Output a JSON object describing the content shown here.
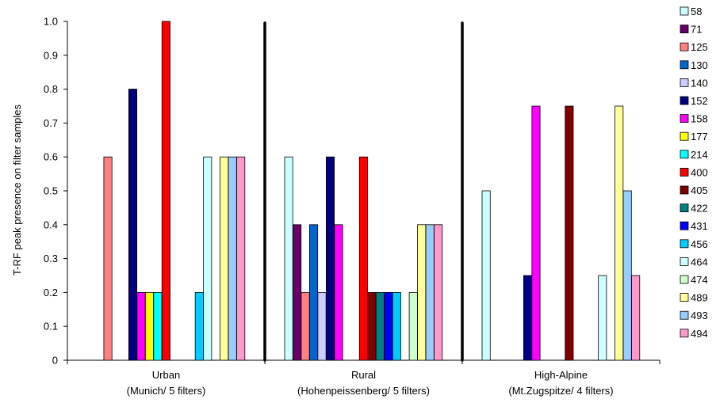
{
  "chart_data": {
    "type": "bar",
    "ylabel": "T-RF peak presence on filter samples",
    "xlabel": "",
    "ylim": [
      0,
      1.0
    ],
    "yticks": [
      "0",
      "0.1",
      "0.2",
      "0.3",
      "0.4",
      "0.5",
      "0.6",
      "0.7",
      "0.8",
      "0.9",
      "1.0"
    ],
    "grid": false,
    "legend_position": "right",
    "categories": [
      [
        "Urban",
        "(Munich/ 5 filters)"
      ],
      [
        "Rural",
        "(Hohenpeissenberg/ 5 filters)"
      ],
      [
        "High-Alpine",
        "(Mt.Zugspitze/ 4 filters)"
      ]
    ],
    "series": [
      {
        "name": "58",
        "color": "#ccffff",
        "values": [
          0,
          0.6,
          0.5
        ]
      },
      {
        "name": "71",
        "color": "#660066",
        "values": [
          0,
          0.4,
          0
        ]
      },
      {
        "name": "125",
        "color": "#ff8080",
        "values": [
          0.6,
          0.2,
          0
        ]
      },
      {
        "name": "130",
        "color": "#0066cc",
        "values": [
          0,
          0.4,
          0
        ]
      },
      {
        "name": "140",
        "color": "#ccccff",
        "values": [
          0,
          0.2,
          0
        ]
      },
      {
        "name": "152",
        "color": "#000080",
        "values": [
          0.8,
          0.6,
          0.25
        ]
      },
      {
        "name": "158",
        "color": "#ff00ff",
        "values": [
          0.2,
          0.4,
          0.75
        ]
      },
      {
        "name": "177",
        "color": "#ffff00",
        "values": [
          0.2,
          0,
          0
        ]
      },
      {
        "name": "214",
        "color": "#00ffff",
        "values": [
          0.2,
          0,
          0
        ]
      },
      {
        "name": "400",
        "color": "#ff0000",
        "values": [
          1.0,
          0.6,
          0
        ]
      },
      {
        "name": "405",
        "color": "#800000",
        "values": [
          0,
          0.2,
          0.75
        ]
      },
      {
        "name": "422",
        "color": "#008080",
        "values": [
          0,
          0.2,
          0
        ]
      },
      {
        "name": "431",
        "color": "#0000ff",
        "values": [
          0,
          0.2,
          0
        ]
      },
      {
        "name": "456",
        "color": "#00ccff",
        "values": [
          0.2,
          0.2,
          0
        ]
      },
      {
        "name": "464",
        "color": "#ccffff",
        "values": [
          0.6,
          0,
          0.25
        ]
      },
      {
        "name": "474",
        "color": "#ccffcc",
        "values": [
          0,
          0.2,
          0
        ]
      },
      {
        "name": "489",
        "color": "#ffff99",
        "values": [
          0.6,
          0.4,
          0.75
        ]
      },
      {
        "name": "493",
        "color": "#99ccff",
        "values": [
          0.6,
          0.4,
          0.5
        ]
      },
      {
        "name": "494",
        "color": "#ff99cc",
        "values": [
          0.6,
          0.4,
          0.25
        ]
      }
    ]
  }
}
